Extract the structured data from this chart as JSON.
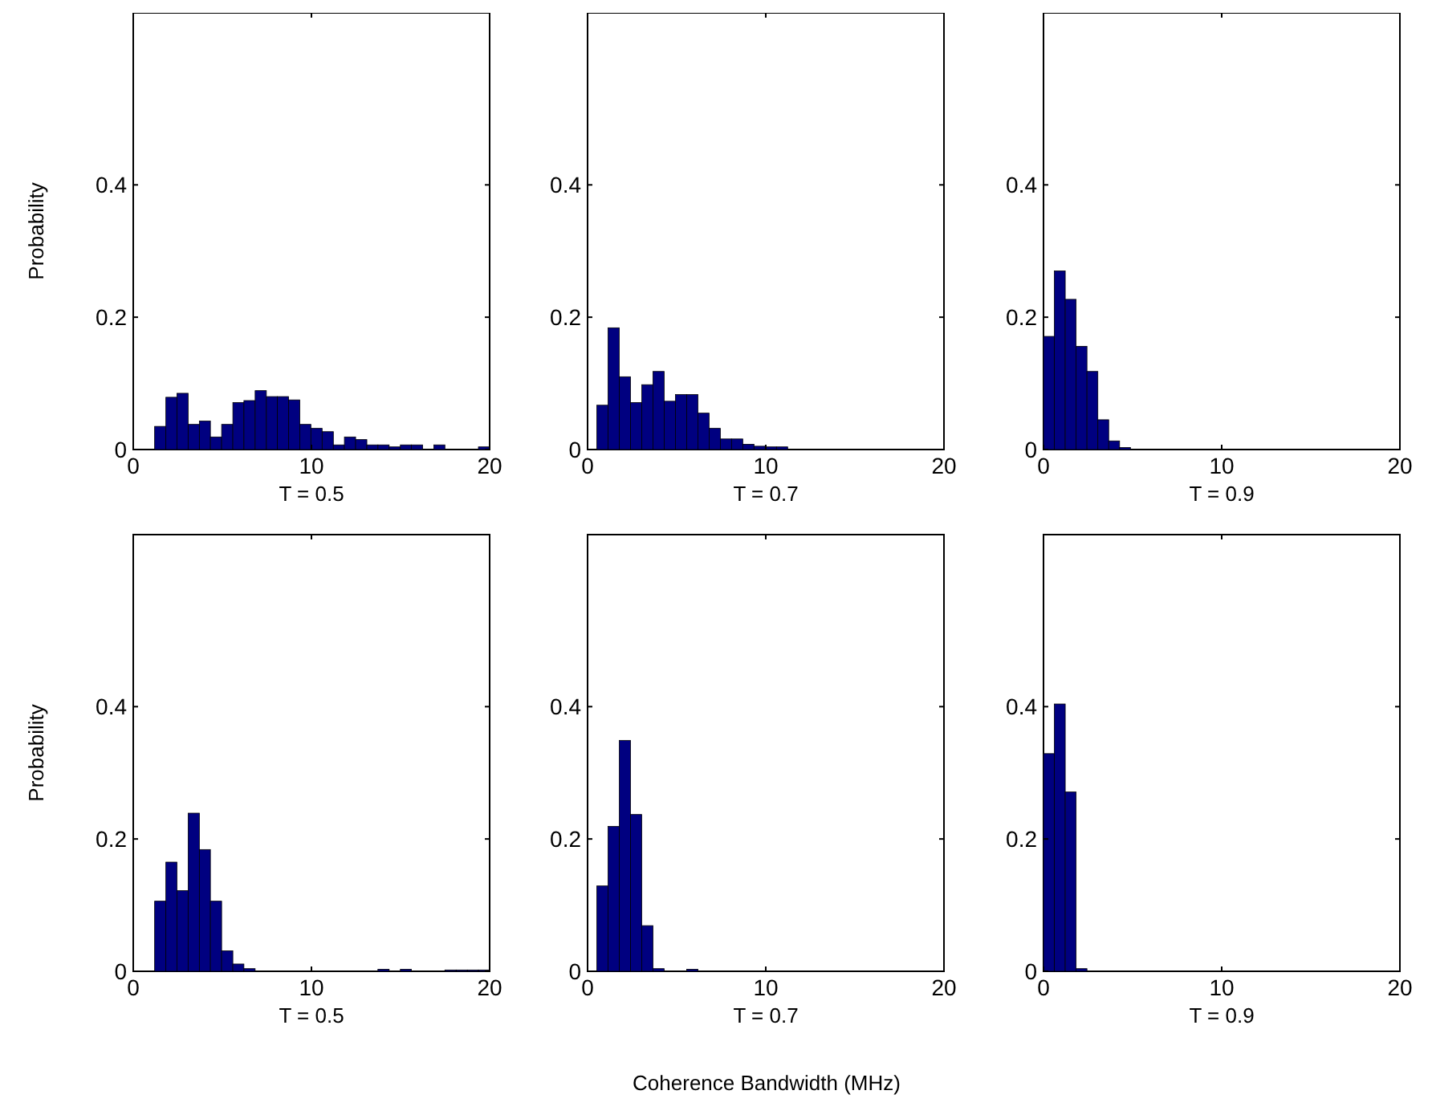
{
  "chart_data": [
    {
      "type": "histogram",
      "xlabel": "T = 0.5",
      "ylabel": "Probability",
      "color": "#000080",
      "xlim": [
        0,
        20
      ],
      "xticks": [
        0,
        10,
        20
      ],
      "ylim": [
        0,
        0.66
      ],
      "yticks": [
        {
          "value": 0,
          "label": "0"
        },
        {
          "value": 0.2,
          "label": "0.2"
        },
        {
          "value": 0.4,
          "label": "0.4"
        }
      ],
      "bins": [
        1.2,
        1.83,
        2.45,
        3.08,
        3.71,
        4.33,
        4.96,
        5.59,
        6.21,
        6.84,
        7.47,
        8.09,
        8.72,
        9.35,
        9.97,
        10.6,
        11.23,
        11.85,
        12.48,
        13.11,
        13.73,
        14.36,
        14.99,
        15.61,
        16.24,
        16.87,
        17.49,
        18.12,
        18.75,
        19.37,
        20.0
      ],
      "values": [
        0.035,
        0.079,
        0.085,
        0.038,
        0.043,
        0.019,
        0.038,
        0.071,
        0.074,
        0.089,
        0.08,
        0.08,
        0.075,
        0.038,
        0.032,
        0.027,
        0.007,
        0.019,
        0.015,
        0.007,
        0.007,
        0.004,
        0.007,
        0.007,
        0,
        0.007,
        0,
        0,
        0,
        0.004
      ]
    },
    {
      "type": "histogram",
      "xlabel": "T = 0.7",
      "color": "#000080",
      "xlim": [
        0,
        20
      ],
      "xticks": [
        0,
        10,
        20
      ],
      "ylim": [
        0,
        0.66
      ],
      "yticks": [
        {
          "value": 0,
          "label": "0"
        },
        {
          "value": 0.2,
          "label": "0.2"
        },
        {
          "value": 0.4,
          "label": "0.4"
        }
      ],
      "bins": [
        0.52,
        1.15,
        1.78,
        2.41,
        3.04,
        3.67,
        4.3,
        4.93,
        5.56,
        6.19,
        6.82,
        7.45,
        8.08,
        8.71,
        9.34,
        9.97,
        10.6,
        11.23
      ],
      "values": [
        0.067,
        0.184,
        0.11,
        0.071,
        0.098,
        0.118,
        0.073,
        0.083,
        0.083,
        0.055,
        0.032,
        0.016,
        0.016,
        0.008,
        0.005,
        0.004,
        0.004
      ]
    },
    {
      "type": "histogram",
      "xlabel": "T = 0.9",
      "color": "#000080",
      "xlim": [
        0,
        20
      ],
      "xticks": [
        0,
        10,
        20
      ],
      "ylim": [
        0,
        0.66
      ],
      "yticks": [
        {
          "value": 0,
          "label": "0"
        },
        {
          "value": 0.2,
          "label": "0.2"
        },
        {
          "value": 0.4,
          "label": "0.4"
        }
      ],
      "bins": [
        0,
        0.61,
        1.22,
        1.83,
        2.44,
        3.05,
        3.66,
        4.27,
        4.88
      ],
      "values": [
        0.171,
        0.27,
        0.227,
        0.156,
        0.118,
        0.045,
        0.013,
        0.003
      ]
    },
    {
      "type": "histogram",
      "xlabel": "T = 0.5",
      "ylabel": "Probability",
      "color": "#000080",
      "xlim": [
        0,
        20
      ],
      "xticks": [
        0,
        10,
        20
      ],
      "ylim": [
        0,
        0.66
      ],
      "yticks": [
        {
          "value": 0,
          "label": "0"
        },
        {
          "value": 0.2,
          "label": "0.2"
        },
        {
          "value": 0.4,
          "label": "0.4"
        }
      ],
      "bins": [
        1.2,
        1.83,
        2.45,
        3.08,
        3.71,
        4.33,
        4.96,
        5.59,
        6.21,
        6.84,
        7.47,
        8.09,
        8.72,
        9.35,
        9.97,
        10.6,
        11.23,
        11.85,
        12.48,
        13.11,
        13.73,
        14.36,
        14.99,
        15.61,
        16.24,
        16.87,
        17.49,
        18.12,
        18.75,
        19.37,
        20.0
      ],
      "values": [
        0.106,
        0.165,
        0.122,
        0.239,
        0.184,
        0.106,
        0.031,
        0.011,
        0.004,
        0,
        0,
        0,
        0,
        0,
        0,
        0,
        0,
        0,
        0,
        0,
        0.003,
        0,
        0.003,
        0,
        0,
        0,
        0.002,
        0.002,
        0.002,
        0.002
      ]
    },
    {
      "type": "histogram",
      "xlabel": "T = 0.7",
      "color": "#000080",
      "xlim": [
        0,
        20
      ],
      "xticks": [
        0,
        10,
        20
      ],
      "ylim": [
        0,
        0.66
      ],
      "yticks": [
        {
          "value": 0,
          "label": "0"
        },
        {
          "value": 0.2,
          "label": "0.2"
        },
        {
          "value": 0.4,
          "label": "0.4"
        }
      ],
      "bins": [
        0.52,
        1.15,
        1.78,
        2.41,
        3.04,
        3.67,
        4.3,
        4.93,
        5.56,
        6.19
      ],
      "values": [
        0.129,
        0.219,
        0.349,
        0.237,
        0.069,
        0.004,
        0,
        0,
        0.003
      ],
      "annotations": [
        "Coherence Bandwidth (MHz)"
      ]
    },
    {
      "type": "histogram",
      "xlabel": "T = 0.9",
      "color": "#000080",
      "xlim": [
        0,
        20
      ],
      "xticks": [
        0,
        10,
        20
      ],
      "ylim": [
        0,
        0.66
      ],
      "yticks": [
        {
          "value": 0,
          "label": "0"
        },
        {
          "value": 0.2,
          "label": "0.2"
        },
        {
          "value": 0.4,
          "label": "0.4"
        }
      ],
      "bins": [
        0,
        0.61,
        1.22,
        1.83,
        2.44
      ],
      "values": [
        0.329,
        0.404,
        0.271,
        0.004
      ]
    }
  ]
}
